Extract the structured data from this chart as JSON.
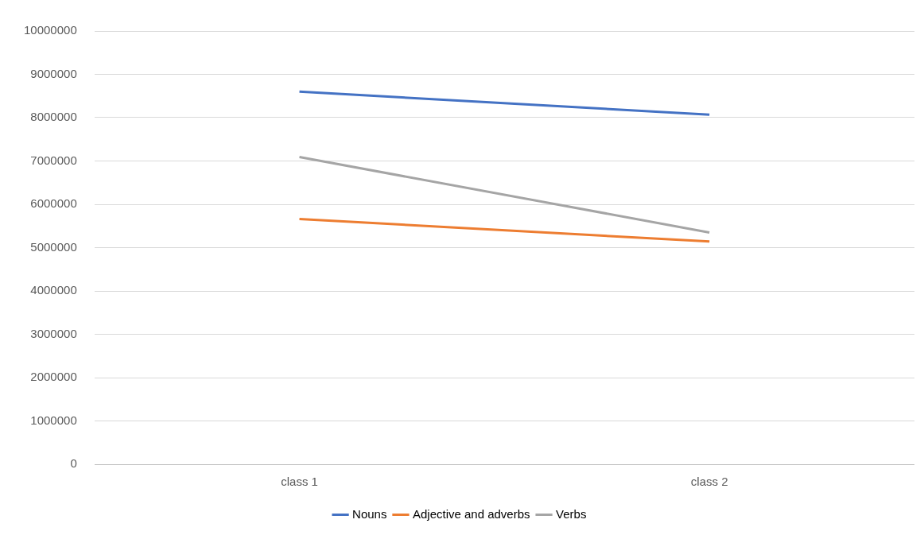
{
  "chart_data": {
    "type": "line",
    "categories": [
      "class 1",
      "class 2"
    ],
    "series": [
      {
        "name": "Nouns",
        "color": "#4472c4",
        "values": [
          8600000,
          8070000
        ]
      },
      {
        "name": "Adjective and adverbs",
        "color": "#ed7d31",
        "values": [
          5660000,
          5140000
        ]
      },
      {
        "name": "Verbs",
        "color": "#a5a5a5",
        "values": [
          7090000,
          5350000
        ]
      }
    ],
    "ylim": [
      0,
      10000000
    ],
    "yticks": [
      0,
      1000000,
      2000000,
      3000000,
      4000000,
      5000000,
      6000000,
      7000000,
      8000000,
      9000000,
      10000000
    ],
    "grid": "y",
    "legend": "bottom",
    "marker": "none",
    "line_style": "solid"
  }
}
